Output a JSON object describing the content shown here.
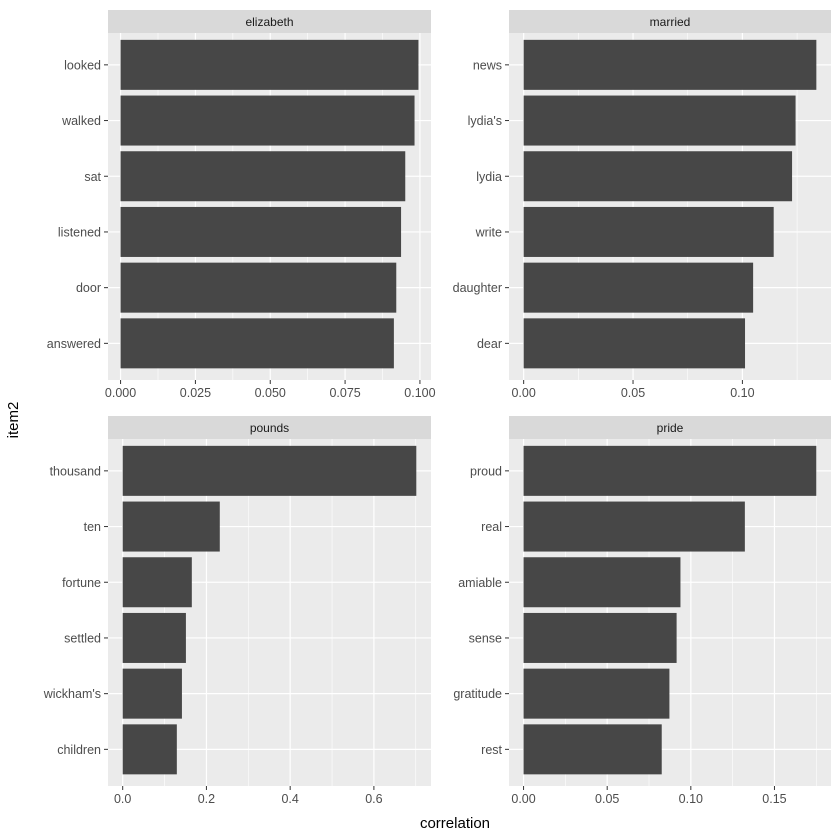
{
  "chart_data": {
    "type": "bar",
    "orientation": "horizontal",
    "xlabel": "correlation",
    "ylabel": "item2",
    "grid": true,
    "panels": [
      {
        "title": "elizabeth",
        "categories": [
          "looked",
          "walked",
          "sat",
          "listened",
          "door",
          "answered"
        ],
        "values": [
          0.0995,
          0.0982,
          0.0951,
          0.0937,
          0.0921,
          0.0913
        ],
        "xlim": [
          -0.0042,
          0.1037
        ],
        "ticks": [
          0,
          0.025,
          0.05,
          0.075,
          0.1
        ],
        "tick_labels": [
          "0.000",
          "0.025",
          "0.050",
          "0.075",
          "0.100"
        ]
      },
      {
        "title": "married",
        "categories": [
          "news",
          "lydia's",
          "lydia",
          "write",
          "daughter",
          "dear"
        ],
        "values": [
          0.1338,
          0.1243,
          0.1227,
          0.1143,
          0.1049,
          0.1012
        ],
        "xlim": [
          -0.0067,
          0.1405
        ],
        "ticks": [
          0,
          0.05,
          0.1
        ],
        "tick_labels": [
          "0.00",
          "0.05",
          "0.10"
        ]
      },
      {
        "title": "pounds",
        "categories": [
          "thousand",
          "ten",
          "fortune",
          "settled",
          "wickham's",
          "children"
        ],
        "values": [
          0.7013,
          0.2319,
          0.1651,
          0.151,
          0.1415,
          0.1293
        ],
        "xlim": [
          -0.0351,
          0.7364
        ],
        "ticks": [
          0,
          0.2,
          0.4,
          0.6
        ],
        "tick_labels": [
          "0.0",
          "0.2",
          "0.4",
          "0.6"
        ]
      },
      {
        "title": "pride",
        "categories": [
          "proud",
          "real",
          "amiable",
          "sense",
          "gratitude",
          "rest"
        ],
        "values": [
          0.175,
          0.1323,
          0.0938,
          0.0915,
          0.0872,
          0.0826
        ],
        "xlim": [
          -0.0087,
          0.1838
        ],
        "ticks": [
          0,
          0.05,
          0.1,
          0.15
        ],
        "tick_labels": [
          "0.00",
          "0.05",
          "0.10",
          "0.15"
        ]
      }
    ],
    "colors": {
      "bar": "#474747",
      "panel_bg": "#ebebeb",
      "strip_bg": "#d9d9d9",
      "grid": "#ffffff",
      "text": "#000000",
      "tick_text": "#4d4d4d",
      "tick_mark": "#333333"
    }
  }
}
